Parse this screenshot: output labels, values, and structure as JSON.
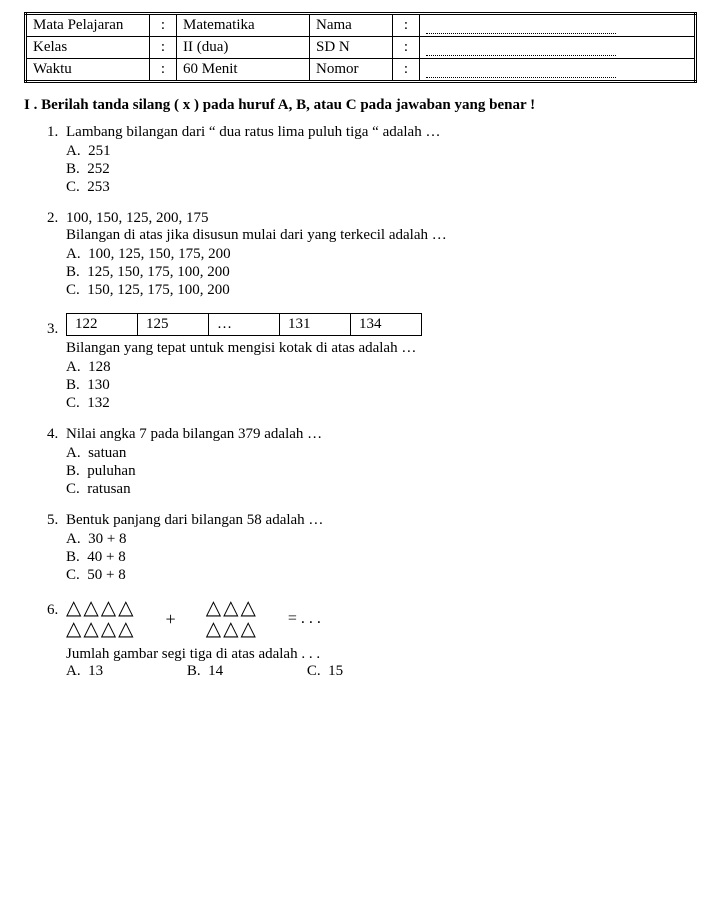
{
  "header": {
    "rows": [
      {
        "l_label": "Mata Pelajaran",
        "l_val": "Matematika",
        "r_label": "Nama"
      },
      {
        "l_label": "Kelas",
        "l_val": "II (dua)",
        "r_label": "SD N"
      },
      {
        "l_label": "Waktu",
        "l_val": "60 Menit",
        "r_label": "Nomor"
      }
    ]
  },
  "section_title": "I .  Berilah tanda silang ( x ) pada huruf  A, B, atau C  pada jawaban yang benar  !",
  "q1": {
    "text": "Lambang bilangan dari  “ dua ratus lima puluh tiga “  adalah …",
    "A": "251",
    "B": "252",
    "C": "253"
  },
  "q2": {
    "line1": "100,  150,  125,  200,  175",
    "line2": "Bilangan di atas jika disusun mulai dari yang terkecil adalah …",
    "A": "100,  125,  150,  175,  200",
    "B": "125,  150,  175,  100,  200",
    "C": "150,  125,  175,  100,  200"
  },
  "q3": {
    "cells": [
      "122",
      "125",
      "…",
      "131",
      "134"
    ],
    "after": "Bilangan yang tepat untuk mengisi kotak di atas adalah …",
    "A": "128",
    "B": "130",
    "C": "132"
  },
  "q4": {
    "text": "Nilai angka  7  pada bilangan  379  adalah …",
    "A": "satuan",
    "B": "puluhan",
    "C": "ratusan"
  },
  "q5": {
    "text": "Bentuk panjang dari bilangan  58  adalah …",
    "A": "30  +  8",
    "B": "40  +  8",
    "C": "50  +  8"
  },
  "q6": {
    "left_top": "△△△△",
    "left_bot": "△△△△",
    "right_top": "△△△",
    "right_bot": "△△△",
    "plus": "+",
    "eq": "=  .  .  .",
    "after": "Jumlah gambar segi tiga di atas adalah . . .",
    "A": "13",
    "B": "14",
    "C": "15"
  }
}
